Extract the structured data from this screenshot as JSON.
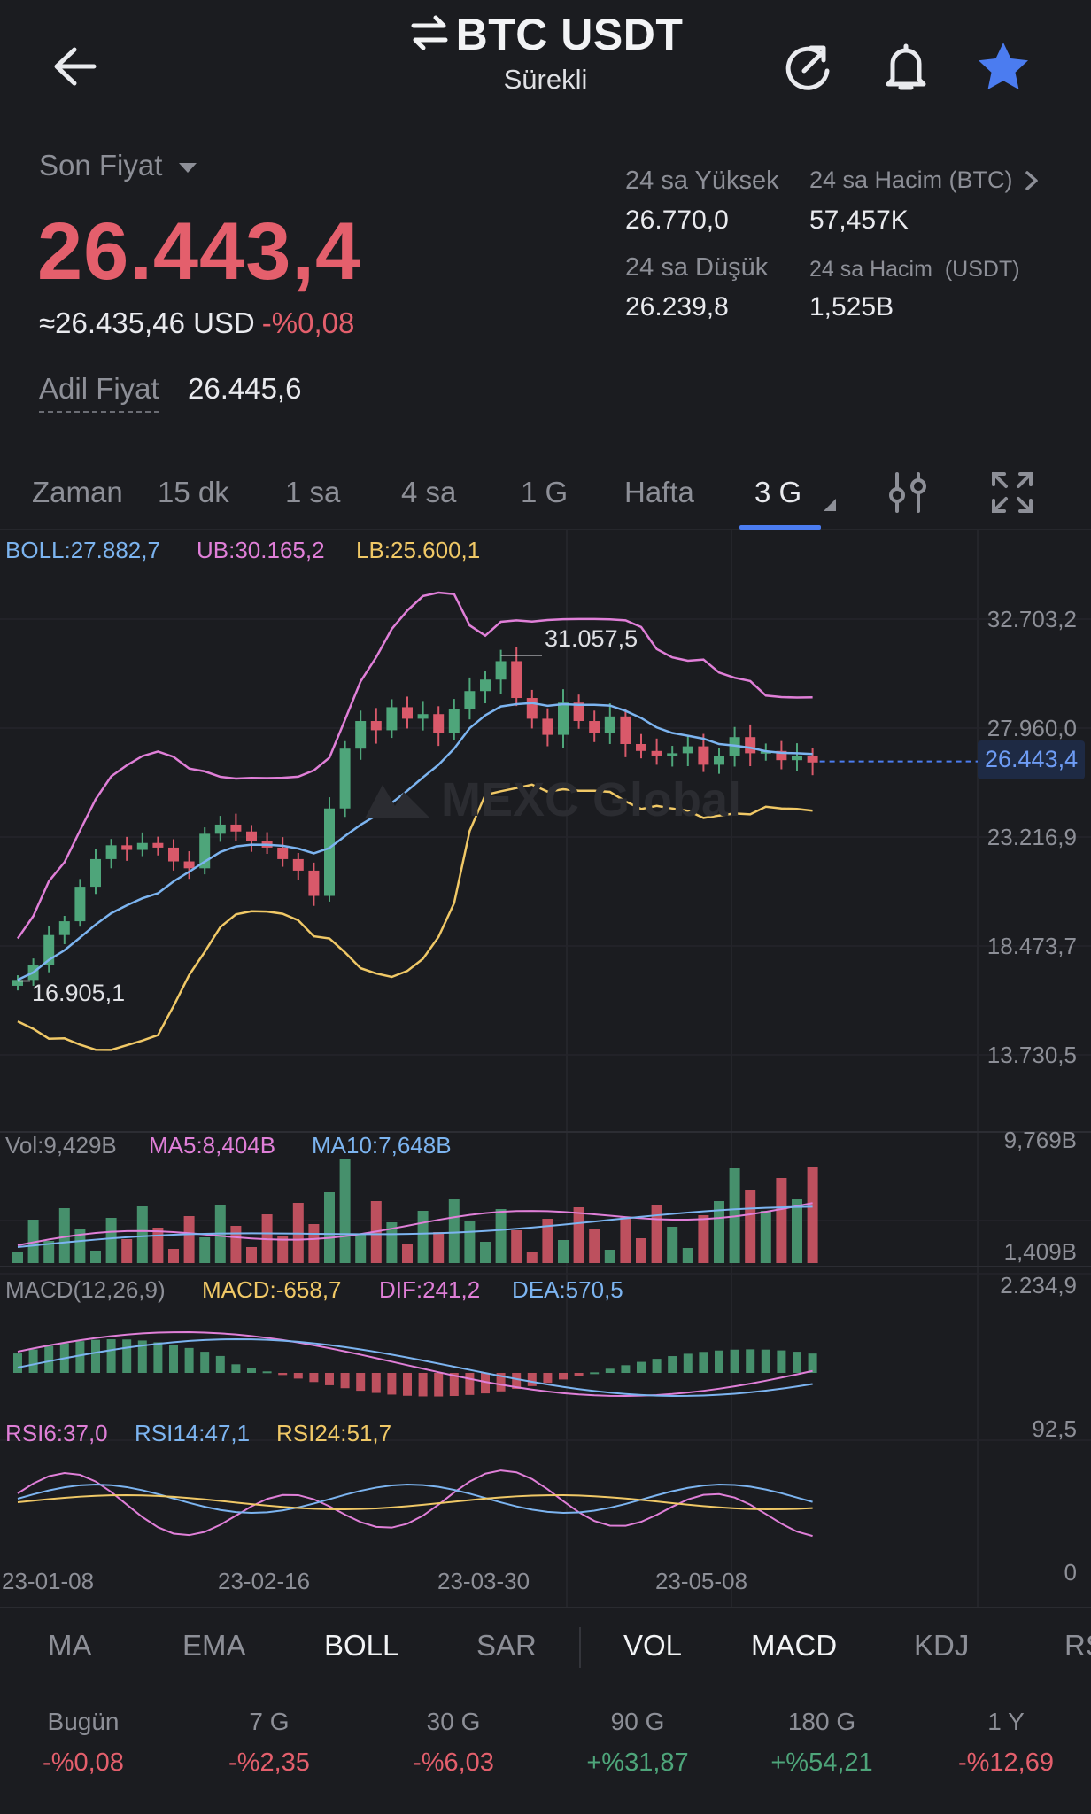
{
  "header": {
    "title": "BTC USDT",
    "subtitle": "Sürekli",
    "icons": [
      "back-arrow-icon",
      "swap-icon",
      "refresh-icon",
      "bell-icon",
      "star-icon"
    ],
    "star_color": "#4b7cf0"
  },
  "price": {
    "label": "Son Fiyat",
    "last": "26.443,4",
    "usd_approx": "≈26.435,46 USD",
    "change": "-%0,08",
    "fair_label": "Adil Fiyat",
    "fair_value": "26.445,6",
    "down_color": "#e45f6c",
    "up_color": "#4ea57a"
  },
  "stats": {
    "high_label": "24 sa Yüksek",
    "high": "26.770,0",
    "low_label": "24 sa Düşük",
    "low": "26.239,8",
    "vol_btc_label": "24 sa Hacim (BTC)",
    "vol_btc": "57,457K",
    "vol_usdt_label": "24 sa Hacim  (USDT)",
    "vol_usdt": "1,525B"
  },
  "timeframes": {
    "items": [
      "Zaman",
      "15 dk",
      "1 sa",
      "4 sa",
      "1 G",
      "Hafta",
      "3 G"
    ],
    "active": "3 G"
  },
  "chart": {
    "boll": "BOLL:27.882,7",
    "ub": "UB:30.165,2",
    "lb": "LB:25.600,1",
    "price_axis": [
      "32.703,2",
      "27.960,0",
      "23.216,9",
      "18.473,7",
      "13.730,5"
    ],
    "current_tag": "26.443,4",
    "max_label": "31.057,5",
    "min_label": "16.905,1",
    "watermark": "MEXC Global",
    "vol": "Vol:9,429B",
    "ma5": "MA5:8,404B",
    "ma10": "MA10:7,648B",
    "vol_axis_top": "9,769B",
    "vol_axis_bottom": "1,409B",
    "macd_title": "MACD(12,26,9)",
    "macd": "MACD:-658,7",
    "dif": "DIF:241,2",
    "dea": "DEA:570,5",
    "macd_axis_top": "2.234,9",
    "rsi6": "RSI6:37,0",
    "rsi14": "RSI14:47,1",
    "rsi24": "RSI24:51,7",
    "rsi_axis_top": "92,5",
    "rsi_axis_bottom": "0",
    "dates": [
      "23-01-08",
      "23-02-16",
      "23-03-30",
      "23-05-08"
    ]
  },
  "chart_data": {
    "type": "candlestick",
    "interval": "3 G",
    "dates": [
      "23-01-08",
      "23-02-16",
      "23-03-30",
      "23-05-08"
    ],
    "price_axis_ticks": [
      32703.2,
      27960.0,
      23216.9,
      18473.7,
      13730.5
    ],
    "high_marker": 31057.5,
    "low_marker": 16905.1,
    "last": 26443.4,
    "close": [
      16950,
      17600,
      18900,
      19500,
      21000,
      22200,
      22800,
      22600,
      22900,
      22700,
      22100,
      21800,
      23300,
      23700,
      23400,
      23000,
      22700,
      22200,
      21700,
      20600,
      24400,
      27000,
      28200,
      27800,
      28800,
      28300,
      28500,
      27700,
      28700,
      29500,
      30000,
      30800,
      29200,
      28300,
      27600,
      29000,
      28200,
      27700,
      28400,
      27200,
      26900,
      26700,
      26800,
      27100,
      26300,
      26700,
      27500,
      26800,
      26900,
      26500,
      26700,
      26400
    ],
    "bollinger": {
      "boll": 27882.7,
      "ub": 30165.2,
      "lb": 25600.1
    },
    "volume": {
      "vol": "9,429B",
      "ma5": "8,404B",
      "ma10": "7,648B"
    },
    "macd": {
      "params": "12,26,9",
      "macd": -658.7,
      "dif": 241.2,
      "dea": 570.5
    },
    "rsi": {
      "rsi6": 37.0,
      "rsi14": 47.1,
      "rsi24": 51.7
    },
    "grid": true
  },
  "indicators": {
    "main": [
      "MA",
      "EMA",
      "BOLL",
      "SAR"
    ],
    "sub": [
      "VOL",
      "MACD",
      "KDJ",
      "RS"
    ],
    "active": [
      "BOLL",
      "VOL",
      "MACD"
    ]
  },
  "performance": [
    {
      "label": "Bugün",
      "value": "-%0,08",
      "dir": "down"
    },
    {
      "label": "7 G",
      "value": "-%2,35",
      "dir": "down"
    },
    {
      "label": "30 G",
      "value": "-%6,03",
      "dir": "down"
    },
    {
      "label": "90 G",
      "value": "+%31,87",
      "dir": "up"
    },
    {
      "label": "180 G",
      "value": "+%54,21",
      "dir": "up"
    },
    {
      "label": "1 Y",
      "value": "-%12,69",
      "dir": "down"
    }
  ]
}
